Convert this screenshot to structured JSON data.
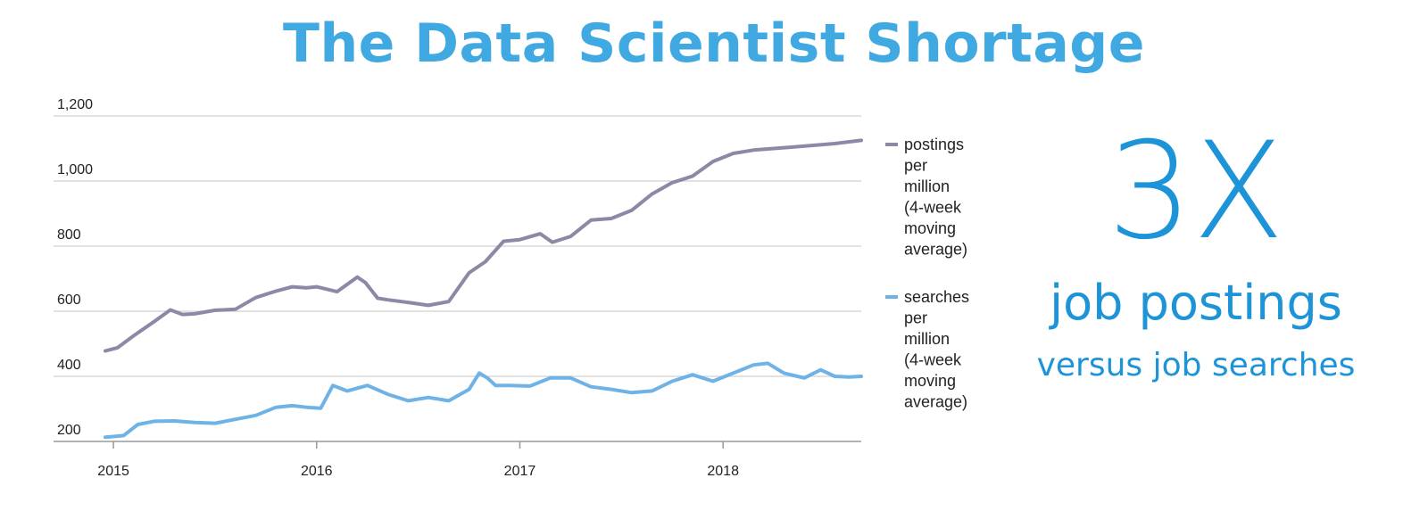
{
  "title": "The Data Scientist Shortage",
  "callout": {
    "big": "3X",
    "line1": "job postings",
    "line2": "versus job searches"
  },
  "colors": {
    "title": "#41a9e1",
    "callout": "#1d94d8",
    "postings": "#8c89a6",
    "searches": "#6fb3e6",
    "grid": "#d9d9d9",
    "axis": "#9a9a9a"
  },
  "chart_data": {
    "type": "line",
    "x_range": [
      2014.96,
      2018.68
    ],
    "ylim": [
      175,
      1220
    ],
    "y_ticks": [
      200,
      400,
      600,
      800,
      1000,
      1200
    ],
    "y_tick_labels": [
      "200",
      "400",
      "600",
      "800",
      "1,000",
      "1,200"
    ],
    "x_ticks": [
      2015,
      2016,
      2017,
      2018
    ],
    "x_tick_labels": [
      "2015",
      "2016",
      "2017",
      "2018"
    ],
    "grid": true,
    "legend_position": "right",
    "series": [
      {
        "name": "postings per million (4-week moving average)",
        "legend_lines": [
          "postings",
          "per",
          "million",
          "(4-week",
          "moving",
          "average)"
        ],
        "color": "#8c89a6",
        "x": [
          2014.96,
          2015.02,
          2015.1,
          2015.2,
          2015.28,
          2015.34,
          2015.4,
          2015.5,
          2015.6,
          2015.7,
          2015.8,
          2015.88,
          2015.95,
          2016.0,
          2016.1,
          2016.2,
          2016.24,
          2016.3,
          2016.35,
          2016.45,
          2016.55,
          2016.65,
          2016.75,
          2016.83,
          2016.92,
          2017.0,
          2017.1,
          2017.16,
          2017.25,
          2017.35,
          2017.45,
          2017.55,
          2017.65,
          2017.75,
          2017.8,
          2017.85,
          2017.95,
          2018.05,
          2018.15,
          2018.25,
          2018.35,
          2018.45,
          2018.55,
          2018.68
        ],
        "y": [
          478,
          488,
          525,
          568,
          604,
          590,
          592,
          603,
          606,
          642,
          662,
          675,
          672,
          675,
          660,
          705,
          688,
          640,
          635,
          627,
          618,
          630,
          718,
          752,
          815,
          820,
          838,
          812,
          830,
          880,
          885,
          910,
          960,
          995,
          1005,
          1015,
          1060,
          1085,
          1095,
          1100,
          1105,
          1110,
          1115,
          1125
        ]
      },
      {
        "name": "searches per million (4-week moving average)",
        "legend_lines": [
          "searches",
          "per",
          "million",
          "(4-week",
          "moving",
          "average)"
        ],
        "color": "#6fb3e6",
        "x": [
          2014.96,
          2015.05,
          2015.12,
          2015.2,
          2015.3,
          2015.4,
          2015.5,
          2015.6,
          2015.7,
          2015.8,
          2015.88,
          2015.95,
          2016.02,
          2016.08,
          2016.15,
          2016.25,
          2016.35,
          2016.45,
          2016.55,
          2016.65,
          2016.75,
          2016.8,
          2016.84,
          2016.88,
          2016.95,
          2017.05,
          2017.15,
          2017.25,
          2017.35,
          2017.45,
          2017.55,
          2017.65,
          2017.75,
          2017.85,
          2017.95,
          2018.05,
          2018.15,
          2018.22,
          2018.3,
          2018.4,
          2018.48,
          2018.55,
          2018.62,
          2018.68
        ],
        "y": [
          213,
          218,
          252,
          262,
          263,
          258,
          256,
          268,
          280,
          305,
          310,
          305,
          302,
          372,
          355,
          372,
          345,
          325,
          335,
          325,
          360,
          410,
          395,
          372,
          372,
          370,
          395,
          395,
          368,
          360,
          350,
          355,
          385,
          405,
          385,
          410,
          435,
          440,
          410,
          395,
          420,
          400,
          398,
          400
        ]
      }
    ]
  }
}
